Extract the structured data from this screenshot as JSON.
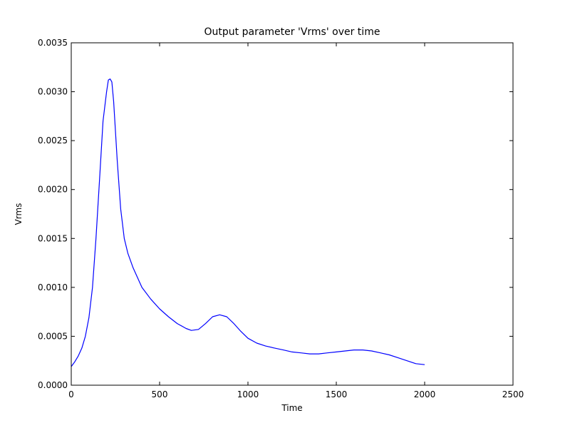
{
  "chart_data": {
    "type": "line",
    "title": "Output parameter 'Vrms' over time",
    "xlabel": "Time",
    "ylabel": "Vrms",
    "xlim": [
      0,
      2500
    ],
    "ylim": [
      0,
      0.0035
    ],
    "xticks": [
      0,
      500,
      1000,
      1500,
      2000,
      2500
    ],
    "xtick_labels": [
      "0",
      "500",
      "1000",
      "1500",
      "2000",
      "2500"
    ],
    "yticks": [
      0,
      0.0005,
      0.001,
      0.0015,
      0.002,
      0.0025,
      0.003,
      0.0035
    ],
    "ytick_labels": [
      "0.0000",
      "0.0005",
      "0.0010",
      "0.0015",
      "0.0020",
      "0.0025",
      "0.0030",
      "0.0035"
    ],
    "grid": false,
    "series": [
      {
        "color": "#0000ff",
        "x": [
          0,
          20,
          40,
          60,
          80,
          100,
          120,
          140,
          160,
          180,
          200,
          210,
          220,
          230,
          240,
          250,
          260,
          280,
          300,
          320,
          350,
          400,
          450,
          500,
          550,
          600,
          650,
          680,
          720,
          760,
          800,
          840,
          880,
          920,
          960,
          1000,
          1050,
          1100,
          1150,
          1200,
          1250,
          1300,
          1350,
          1400,
          1450,
          1500,
          1550,
          1600,
          1650,
          1700,
          1750,
          1800,
          1850,
          1900,
          1950,
          2000
        ],
        "y": [
          0.00019,
          0.00024,
          0.0003,
          0.00038,
          0.0005,
          0.00069,
          0.001,
          0.0015,
          0.0021,
          0.0027,
          0.003,
          0.00312,
          0.00313,
          0.0031,
          0.0029,
          0.0026,
          0.0023,
          0.0018,
          0.0015,
          0.00135,
          0.0012,
          0.001,
          0.00088,
          0.00078,
          0.0007,
          0.00063,
          0.00058,
          0.00056,
          0.00057,
          0.00063,
          0.0007,
          0.00072,
          0.0007,
          0.00063,
          0.00055,
          0.00048,
          0.00043,
          0.0004,
          0.00038,
          0.00036,
          0.00034,
          0.00033,
          0.00032,
          0.00032,
          0.00033,
          0.00034,
          0.00035,
          0.00036,
          0.00036,
          0.00035,
          0.00033,
          0.00031,
          0.00028,
          0.00025,
          0.00022,
          0.00021
        ]
      }
    ]
  }
}
